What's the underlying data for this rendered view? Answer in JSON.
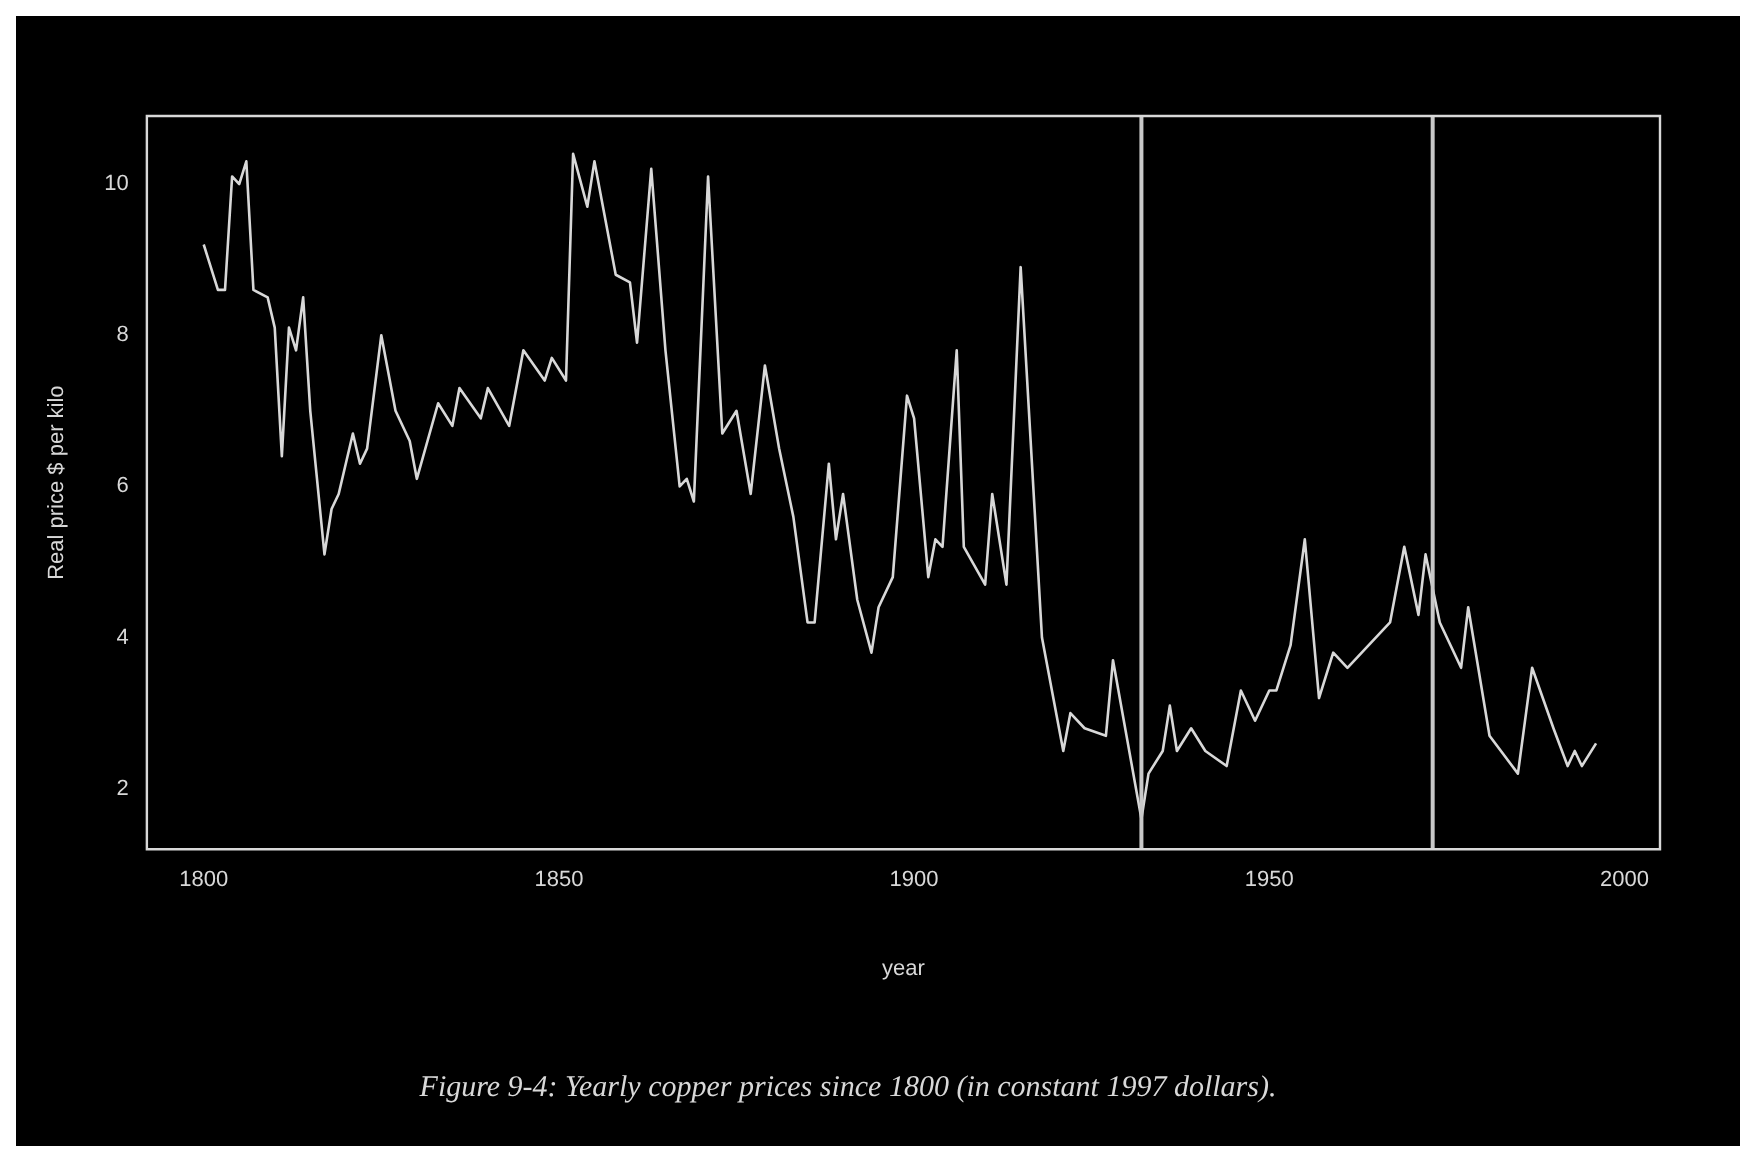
{
  "chart_data": {
    "type": "line",
    "title": "Figure 9-4: Yearly copper prices since 1800 (in constant 1997 dollars).",
    "xlabel": "year",
    "ylabel": "Real price $ per kilo",
    "x": [
      1800,
      1802,
      1803,
      1804,
      1805,
      1806,
      1807,
      1809,
      1810,
      1811,
      1812,
      1813,
      1814,
      1815,
      1817,
      1818,
      1819,
      1821,
      1822,
      1823,
      1825,
      1827,
      1829,
      1830,
      1833,
      1835,
      1836,
      1839,
      1840,
      1843,
      1845,
      1848,
      1849,
      1851,
      1852,
      1854,
      1855,
      1858,
      1860,
      1861,
      1863,
      1865,
      1867,
      1868,
      1869,
      1871,
      1873,
      1875,
      1877,
      1879,
      1881,
      1883,
      1885,
      1886,
      1888,
      1889,
      1890,
      1892,
      1894,
      1895,
      1897,
      1899,
      1900,
      1902,
      1903,
      1904,
      1906,
      1907,
      1910,
      1911,
      1913,
      1915,
      1918,
      1921,
      1922,
      1924,
      1927,
      1928,
      1932,
      1933,
      1935,
      1936,
      1937,
      1939,
      1941,
      1944,
      1946,
      1948,
      1950,
      1951,
      1953,
      1955,
      1957,
      1959,
      1961,
      1964,
      1967,
      1969,
      1971,
      1972,
      1974,
      1977,
      1978,
      1981,
      1985,
      1987,
      1990,
      1992,
      1993,
      1994,
      1996
    ],
    "series": [
      {
        "color": "#d8d8d8",
        "values": [
          9.2,
          8.6,
          8.6,
          10.1,
          10.0,
          10.3,
          8.6,
          8.5,
          8.1,
          6.4,
          8.1,
          7.8,
          8.5,
          7.0,
          5.1,
          5.7,
          5.9,
          6.7,
          6.3,
          6.5,
          8.0,
          7.0,
          6.6,
          6.1,
          7.1,
          6.8,
          7.3,
          6.9,
          7.3,
          6.8,
          7.8,
          7.4,
          7.7,
          7.4,
          10.4,
          9.7,
          10.3,
          8.8,
          8.7,
          7.9,
          10.2,
          7.8,
          6.0,
          6.1,
          5.8,
          10.1,
          6.7,
          7.0,
          5.9,
          7.6,
          6.5,
          5.6,
          4.2,
          4.2,
          6.3,
          5.3,
          5.9,
          4.5,
          3.8,
          4.4,
          4.8,
          7.2,
          6.9,
          4.8,
          5.3,
          5.2,
          7.8,
          5.2,
          4.7,
          5.9,
          4.7,
          8.9,
          4.0,
          2.5,
          3.0,
          2.8,
          2.7,
          3.7,
          1.6,
          2.2,
          2.5,
          3.1,
          2.5,
          2.8,
          2.5,
          2.3,
          3.3,
          2.9,
          3.3,
          3.3,
          3.9,
          5.3,
          3.2,
          3.8,
          3.6,
          3.9,
          4.2,
          5.2,
          4.3,
          5.1,
          4.2,
          3.6,
          4.4,
          2.7,
          2.2,
          3.6,
          2.8,
          2.3,
          2.5,
          2.3,
          2.6
        ]
      }
    ],
    "xlim": [
      1792,
      2005
    ],
    "xticks": [
      1800,
      1850,
      1900,
      1950,
      2000
    ],
    "ylim": [
      1.2,
      10.9
    ],
    "yticks": [
      2,
      4,
      6,
      8,
      10
    ],
    "ref_lines": [
      {
        "axis": "x",
        "value": 1932,
        "color": "#c8c8c8"
      },
      {
        "axis": "x",
        "value": 1973,
        "color": "#c8c8c8"
      }
    ],
    "grid": false,
    "legend": false,
    "marker": "none",
    "line_style": "solid"
  }
}
